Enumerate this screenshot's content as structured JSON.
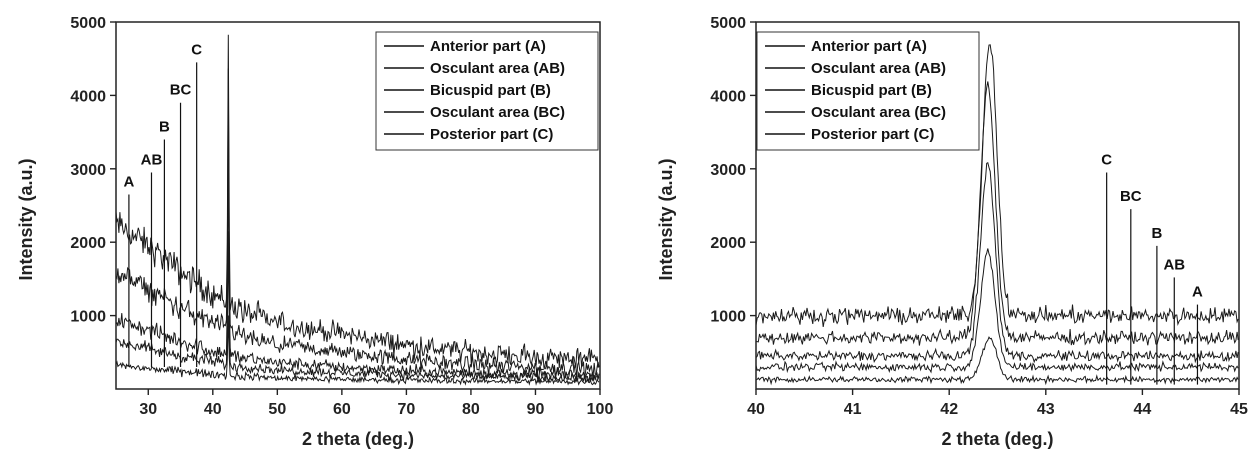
{
  "chart_data": [
    {
      "type": "line",
      "xlabel": "2 theta (deg.)",
      "ylabel": "Intensity (a.u.)",
      "xlim": [
        25,
        100
      ],
      "ylim": [
        0,
        5000
      ],
      "xticks": [
        30,
        40,
        50,
        60,
        70,
        80,
        90,
        100
      ],
      "yticks": [
        1000,
        2000,
        3000,
        4000,
        5000
      ],
      "legend": {
        "position": "top-right",
        "entries": [
          "Anterior part (A)",
          "Osculant area (AB)",
          "Bicuspid part (B)",
          "Osculant area (BC)",
          "Posterior part (C)"
        ]
      },
      "series": [
        {
          "name": "Anterior part (A)",
          "peak_x": 42.4,
          "peak_y": 4750,
          "x": [
            25,
            30,
            35,
            40,
            45,
            50,
            60,
            70,
            80,
            90,
            100
          ],
          "y": [
            2250,
            1950,
            1600,
            1300,
            1050,
            900,
            750,
            600,
            500,
            430,
            400
          ]
        },
        {
          "name": "Osculant area (AB)",
          "peak_x": 42.4,
          "peak_y": 4350,
          "x": [
            25,
            30,
            35,
            40,
            45,
            50,
            60,
            70,
            80,
            90,
            100
          ],
          "y": [
            1600,
            1350,
            1100,
            900,
            700,
            600,
            500,
            400,
            330,
            290,
            260
          ]
        },
        {
          "name": "Bicuspid part (B)",
          "peak_x": 42.4,
          "peak_y": 3300,
          "x": [
            25,
            30,
            35,
            40,
            45,
            50,
            60,
            70,
            80,
            90,
            100
          ],
          "y": [
            950,
            800,
            650,
            520,
            420,
            360,
            300,
            250,
            220,
            200,
            190
          ]
        },
        {
          "name": "Osculant area (BC)",
          "peak_x": 42.4,
          "peak_y": 2100,
          "x": [
            25,
            30,
            35,
            40,
            45,
            50,
            60,
            70,
            80,
            90,
            100
          ],
          "y": [
            650,
            550,
            450,
            370,
            300,
            260,
            220,
            190,
            170,
            160,
            150
          ]
        },
        {
          "name": "Posterior part (C)",
          "peak_x": 42.4,
          "peak_y": 1000,
          "x": [
            25,
            30,
            35,
            40,
            45,
            50,
            60,
            70,
            80,
            90,
            100
          ],
          "y": [
            320,
            280,
            240,
            200,
            170,
            150,
            130,
            120,
            110,
            105,
            100
          ]
        }
      ],
      "annotations": [
        {
          "text": "A",
          "x": 27,
          "y": 2650
        },
        {
          "text": "AB",
          "x": 30.5,
          "y": 2950
        },
        {
          "text": "B",
          "x": 32.5,
          "y": 3400
        },
        {
          "text": "BC",
          "x": 35,
          "y": 3900
        },
        {
          "text": "C",
          "x": 37.5,
          "y": 4450
        }
      ]
    },
    {
      "type": "line",
      "xlabel": "2 theta (deg.)",
      "ylabel": "Intensity (a.u.)",
      "xlim": [
        40,
        45
      ],
      "ylim": [
        0,
        5000
      ],
      "xticks": [
        40,
        41,
        42,
        43,
        44,
        45
      ],
      "yticks": [
        1000,
        2000,
        3000,
        4000,
        5000
      ],
      "legend": {
        "position": "top-left",
        "entries": [
          "Anterior part (A)",
          "Osculant area (AB)",
          "Bicuspid part (B)",
          "Osculant area (BC)",
          "Posterior part (C)"
        ]
      },
      "series": [
        {
          "name": "Anterior part (A)",
          "baseline": 1000,
          "peak_x": 42.42,
          "peak_y": 4750
        },
        {
          "name": "Osculant area (AB)",
          "baseline": 700,
          "peak_x": 42.4,
          "peak_y": 4150
        },
        {
          "name": "Bicuspid part (B)",
          "baseline": 450,
          "peak_x": 42.4,
          "peak_y": 3050
        },
        {
          "name": "Osculant area (BC)",
          "baseline": 300,
          "peak_x": 42.4,
          "peak_y": 1850
        },
        {
          "name": "Posterior part (C)",
          "baseline": 130,
          "peak_x": 42.42,
          "peak_y": 700
        }
      ],
      "annotations": [
        {
          "text": "C",
          "x": 43.63,
          "y": 2950
        },
        {
          "text": "BC",
          "x": 43.88,
          "y": 2450
        },
        {
          "text": "B",
          "x": 44.15,
          "y": 1950
        },
        {
          "text": "AB",
          "x": 44.33,
          "y": 1520
        },
        {
          "text": "A",
          "x": 44.57,
          "y": 1150
        }
      ]
    }
  ]
}
